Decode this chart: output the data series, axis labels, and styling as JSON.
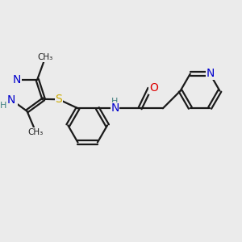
{
  "background_color": "#ebebeb",
  "bond_color": "#1a1a1a",
  "bond_width": 1.6,
  "atom_colors": {
    "N": "#0000cc",
    "O": "#dd0000",
    "S": "#ccaa00",
    "H": "#408080",
    "C": "#1a1a1a"
  },
  "font_size": 9,
  "fig_size": [
    3.0,
    3.0
  ],
  "dpi": 100
}
